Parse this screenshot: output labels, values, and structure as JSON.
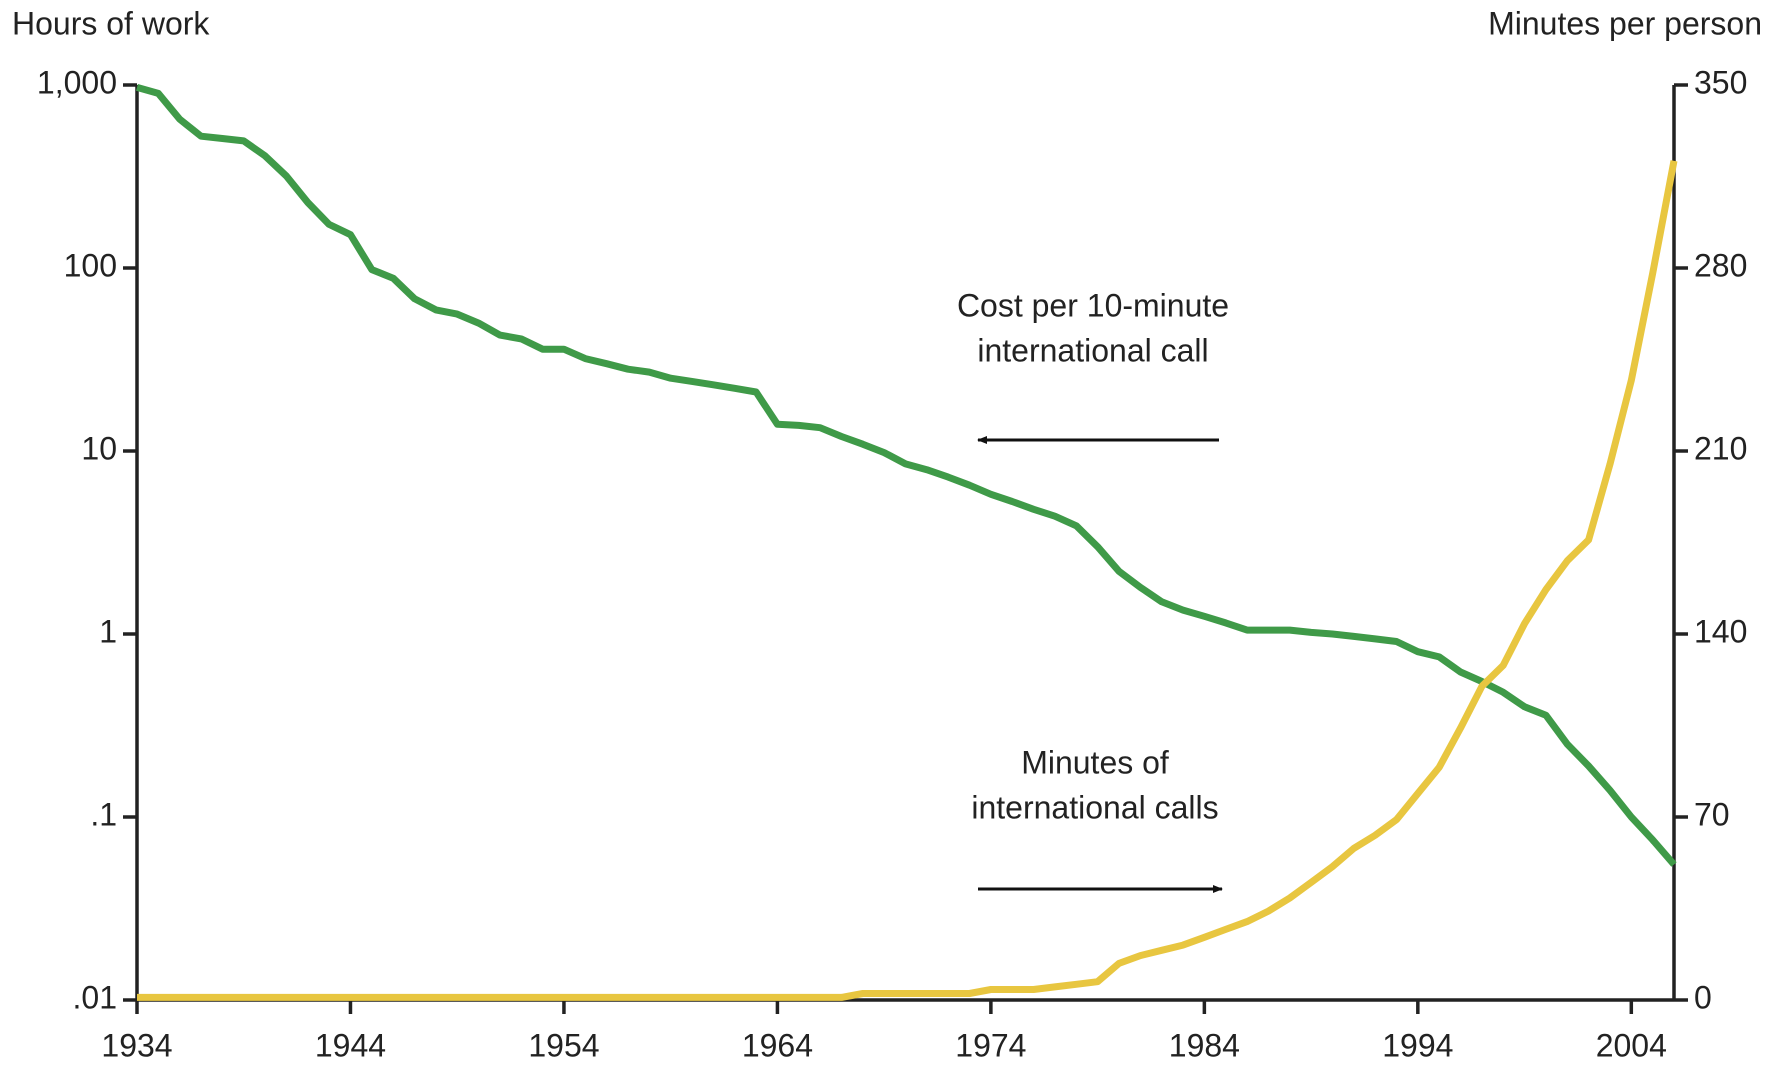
{
  "chart_data": {
    "type": "line",
    "y_label": "Hours of work",
    "y2_label": "Minutes per person",
    "annotations": [
      {
        "lines": [
          "Cost per 10-minute",
          "international call"
        ]
      },
      {
        "lines": [
          "Minutes of",
          "international calls"
        ]
      }
    ],
    "x": [
      1934,
      1935,
      1936,
      1937,
      1938,
      1939,
      1940,
      1941,
      1942,
      1943,
      1944,
      1945,
      1946,
      1947,
      1948,
      1949,
      1950,
      1951,
      1952,
      1953,
      1954,
      1955,
      1956,
      1957,
      1958,
      1959,
      1960,
      1961,
      1962,
      1963,
      1964,
      1965,
      1966,
      1967,
      1968,
      1969,
      1970,
      1971,
      1972,
      1973,
      1974,
      1975,
      1976,
      1977,
      1978,
      1979,
      1980,
      1981,
      1982,
      1983,
      1984,
      1985,
      1986,
      1987,
      1988,
      1989,
      1990,
      1991,
      1992,
      1993,
      1994,
      1995,
      1996,
      1997,
      1998,
      1999,
      2000,
      2001,
      2002,
      2003,
      2004,
      2005,
      2006
    ],
    "xlim": [
      1934,
      2006
    ],
    "xticks": [
      1934,
      1944,
      1954,
      1964,
      1974,
      1984,
      1994,
      2004
    ],
    "yscale": "log",
    "ylim": [
      0.01,
      1000
    ],
    "yticks": [
      {
        "value": 1000,
        "label": "1,000"
      },
      100,
      10,
      1,
      {
        "value": 0.1,
        "label": ".1"
      },
      {
        "value": 0.01,
        "label": ".01"
      }
    ],
    "y2lim": [
      0,
      350
    ],
    "y2ticks": [
      350,
      280,
      210,
      140,
      70,
      0
    ],
    "grid": false,
    "series": [
      {
        "color": "#3f9a48",
        "values": [
          970,
          900,
          650,
          525,
          510,
          495,
          410,
          318,
          228,
          173,
          152,
          98,
          88,
          68,
          59,
          56,
          50,
          43,
          41,
          36,
          36,
          32,
          30,
          28,
          27,
          25,
          24,
          23,
          22,
          21,
          14,
          13.8,
          13.4,
          12,
          10.9,
          9.8,
          8.5,
          7.9,
          7.2,
          6.5,
          5.8,
          5.3,
          4.8,
          4.4,
          3.9,
          3.0,
          2.2,
          1.8,
          1.5,
          1.35,
          1.25,
          1.15,
          1.05,
          1.05,
          1.05,
          1.02,
          1.0,
          0.97,
          0.94,
          0.91,
          0.8,
          0.75,
          0.62,
          0.55,
          0.48,
          0.4,
          0.36,
          0.25,
          0.19,
          0.14,
          0.1,
          0.075,
          0.055
        ]
      },
      {
        "color": "#e8c640",
        "axis": "y2",
        "values": [
          1,
          1,
          1,
          1,
          1,
          1,
          1,
          1,
          1,
          1,
          1,
          1,
          1,
          1,
          1,
          1,
          1,
          1,
          1,
          1,
          1,
          1,
          1,
          1,
          1,
          1,
          1,
          1,
          1,
          1,
          1,
          1,
          1,
          1,
          2.5,
          2.5,
          2.5,
          2.5,
          2.5,
          2.5,
          4,
          4,
          4,
          5,
          6,
          7,
          14,
          17,
          19,
          21,
          24,
          27,
          30,
          34,
          39,
          45,
          51,
          58,
          63,
          69,
          79,
          89,
          104,
          120,
          128,
          144,
          157,
          168,
          176,
          205,
          237,
          278,
          321
        ]
      }
    ]
  }
}
